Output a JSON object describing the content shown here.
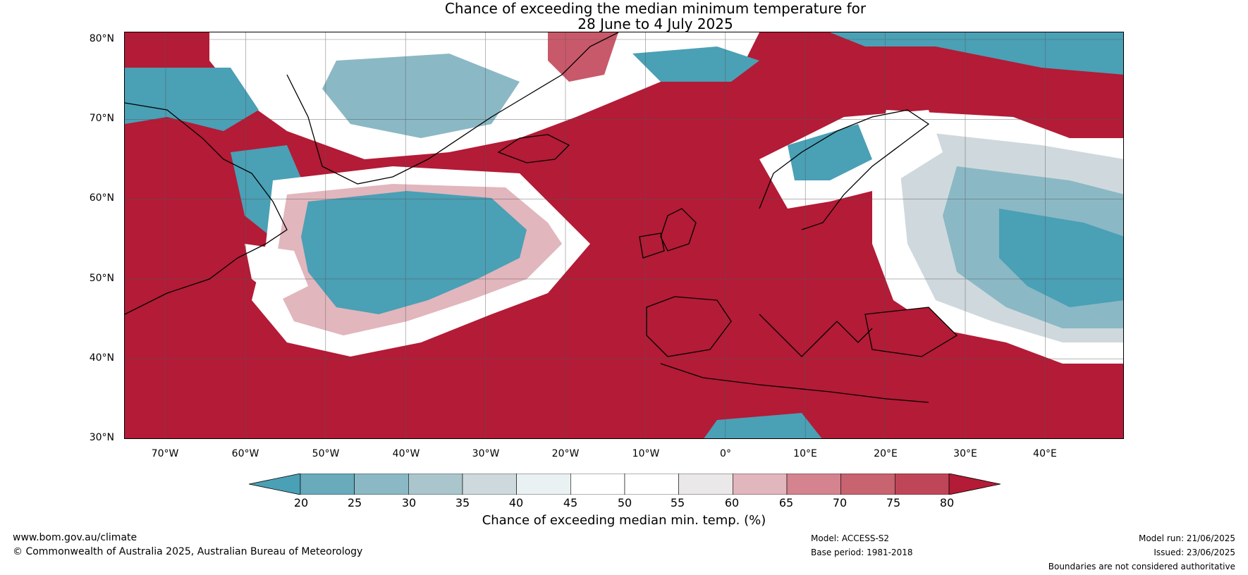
{
  "title": {
    "line1": "Chance of exceeding the median minimum temperature for",
    "line2": "28 June to 4 July 2025"
  },
  "map": {
    "lat_labels": [
      "80°N",
      "70°N",
      "60°N",
      "50°N",
      "40°N",
      "30°N"
    ],
    "lon_labels": [
      "70°W",
      "60°W",
      "50°W",
      "40°W",
      "30°W",
      "20°W",
      "10°W",
      "0°",
      "10°E",
      "20°E",
      "30°E",
      "40°E"
    ],
    "colors": {
      "strong_warm": "#b31b36",
      "warm": "#c8596a",
      "mild_warm": "#e2b6bd",
      "neutral": "#ffffff",
      "mild_cool": "#cfd9dd",
      "cool": "#8bb8c5",
      "strong_cool": "#4aa0b5",
      "coast": "#000000",
      "border": "#808080"
    }
  },
  "colorbar": {
    "label": "Chance of exceeding median min. temp. (%)",
    "ticks": [
      "20",
      "25",
      "30",
      "35",
      "40",
      "45",
      "50",
      "55",
      "60",
      "65",
      "70",
      "75",
      "80"
    ],
    "segment_colors": [
      "#4aa0b5",
      "#69aabb",
      "#8bb8c5",
      "#aac6cc",
      "#cdd9dd",
      "#e9f1f3",
      "#ffffff",
      "#ffffff",
      "#eae8e9",
      "#e2b6bd",
      "#d4838f",
      "#c86370",
      "#bf4658",
      "#b31b36"
    ]
  },
  "footer": {
    "website": "www.bom.gov.au/climate",
    "copyright": "© Commonwealth of Australia 2025, Australian Bureau of Meteorology",
    "model": "Model: ACCESS-S2",
    "base_period": "Base period: 1981-2018",
    "model_run": "Model run: 21/06/2025",
    "issued": "Issued: 23/06/2025",
    "disclaimer": "Boundaries are not considered authoritative"
  }
}
